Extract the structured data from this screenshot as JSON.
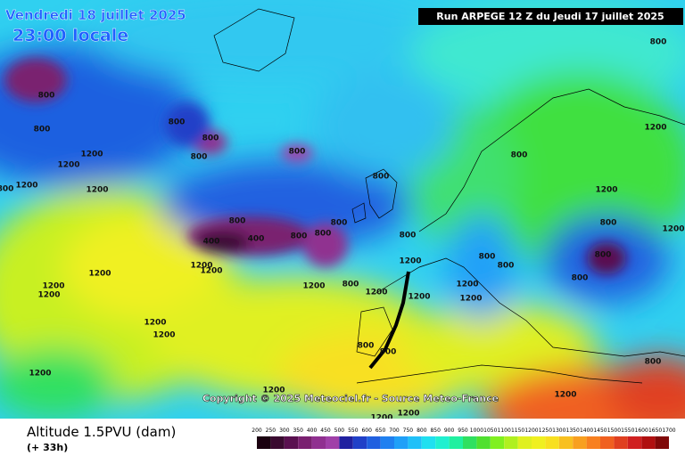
{
  "header": {
    "date": "Vendredi 18 juillet 2025",
    "time": "23:00 locale",
    "run": "Run ARPEGE 12 Z du Jeudi 17 juillet 2025"
  },
  "copyright": "Copyright © 2025 Meteociel.fr - Source Meteo-France",
  "footer": {
    "title": "Altitude 1.5PVU (dam)",
    "lead": "(+ 33h)"
  },
  "contour_labels": [
    "800",
    "800",
    "800",
    "800",
    "800",
    "800",
    "800",
    "1200",
    "1200",
    "1200",
    "800",
    "1200",
    "800",
    "1200",
    "1200",
    "800",
    "400",
    "400",
    "800",
    "800",
    "800",
    "800",
    "800",
    "1200",
    "800",
    "800",
    "800",
    "800",
    "800",
    "800",
    "1200",
    "1200",
    "1200",
    "1200",
    "1200",
    "1200",
    "1200",
    "1200",
    "1200",
    "1200",
    "1200",
    "1200",
    "1200",
    "1200",
    "800",
    "800",
    "800",
    "1200",
    "1200",
    "1200",
    "1200"
  ],
  "legend": {
    "labels": [
      200,
      250,
      300,
      350,
      400,
      450,
      500,
      550,
      600,
      650,
      700,
      750,
      800,
      850,
      900,
      950,
      1000,
      1050,
      1100,
      1150,
      1200,
      1250,
      1300,
      1350,
      1400,
      1450,
      1500,
      1550,
      1600,
      1650,
      1700
    ],
    "colors": [
      "#1a0010",
      "#3a0a30",
      "#5a1050",
      "#7a2070",
      "#903090",
      "#a040a8",
      "#2020a0",
      "#2040c8",
      "#2060e0",
      "#2080f0",
      "#20a0f8",
      "#20c0f8",
      "#20e0f0",
      "#20f0d0",
      "#20f0a0",
      "#30e060",
      "#50e030",
      "#80f020",
      "#b0f020",
      "#e0f020",
      "#f0f020",
      "#f8e020",
      "#f8c020",
      "#f8a020",
      "#f88020",
      "#f06020",
      "#e04020",
      "#d02020",
      "#b01010",
      "#800808"
    ]
  }
}
